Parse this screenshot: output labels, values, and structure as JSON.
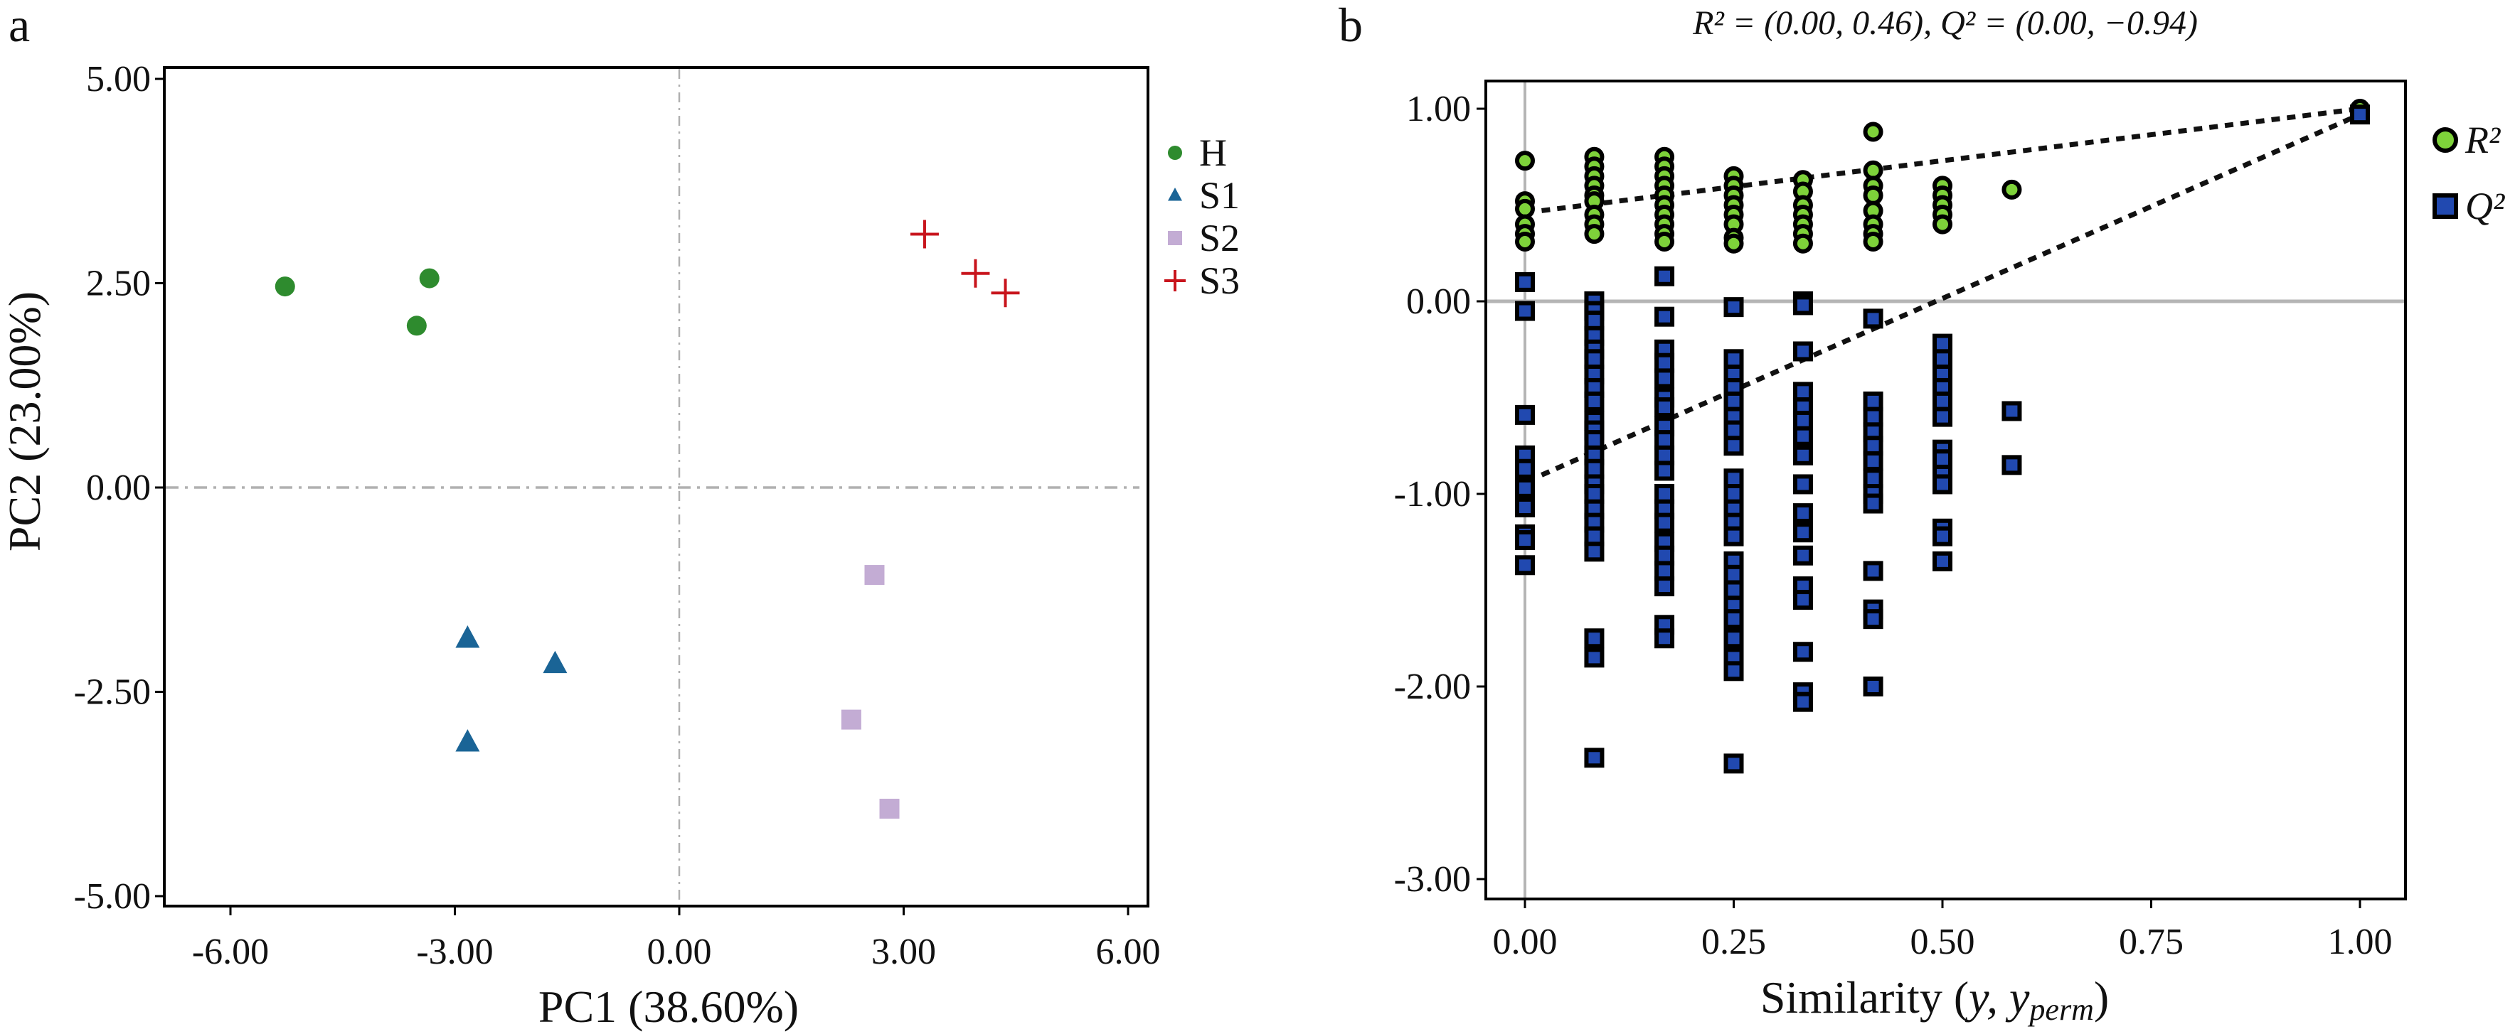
{
  "chart_data": [
    {
      "type": "scatter",
      "panel_label": "a",
      "xlabel": "PC1 (38.60%)",
      "ylabel": "PC2 (23.00%)",
      "xlim": [
        -6.9,
        6.3
      ],
      "ylim": [
        -5.15,
        5.2
      ],
      "xticks": [
        -6,
        -3,
        0,
        3,
        6
      ],
      "xtick_labels": [
        "-6.00",
        "-3.00",
        "0.00",
        "3.00",
        "6.00"
      ],
      "yticks": [
        5,
        2.5,
        0,
        -2.5,
        -5
      ],
      "ytick_labels": [
        "5.00",
        "2.50",
        "0.00",
        "-2.50",
        "-5.00"
      ],
      "reference_lines": "dash-dot at x=0 and y=0",
      "legend_position": "right",
      "series": [
        {
          "name": "H",
          "marker": "circle",
          "color": "#2e8b2e",
          "x": [
            -5.27,
            -3.34,
            -3.51
          ],
          "y": [
            2.46,
            2.56,
            1.98
          ]
        },
        {
          "name": "S1",
          "marker": "triangle",
          "color": "#1a6496",
          "x": [
            -2.83,
            -1.66,
            -2.83
          ],
          "y": [
            -1.85,
            -2.16,
            -3.12
          ]
        },
        {
          "name": "S2",
          "marker": "square",
          "color": "#c3acd4",
          "x": [
            2.61,
            2.3,
            2.81
          ],
          "y": [
            -1.07,
            -2.84,
            -3.93
          ]
        },
        {
          "name": "S3",
          "marker": "plus",
          "color": "#c8141c",
          "x": [
            3.28,
            3.96,
            4.36
          ],
          "y": [
            3.1,
            2.62,
            2.38
          ]
        }
      ]
    },
    {
      "type": "scatter",
      "panel_label": "b",
      "title": "R² = (0.00, 0.46),  Q² = (0.00, −0.94)",
      "xlabel_parts": [
        "Similarity (",
        "y",
        ", y",
        "perm",
        ")"
      ],
      "xlim": [
        -0.05,
        1.05
      ],
      "ylim": [
        -3.1,
        1.15
      ],
      "xticks": [
        0,
        0.25,
        0.5,
        0.75,
        1
      ],
      "xtick_labels": [
        "0.00",
        "0.25",
        "0.50",
        "0.75",
        "1.00"
      ],
      "yticks": [
        1,
        0,
        -1,
        -2,
        -3
      ],
      "ytick_labels": [
        "1.00",
        "0.00",
        "-1.00",
        "-2.00",
        "-3.00"
      ],
      "reference_lines": "solid gray at x=0 and y=0",
      "legend_position": "right",
      "series": [
        {
          "name": "R²",
          "marker": "circle",
          "color": "#7ed23a",
          "columns": [
            {
              "x": 0,
              "y": [
                0.73,
                0.52,
                0.48,
                0.4,
                0.35,
                0.31
              ]
            },
            {
              "x": 0.083,
              "y": [
                0.75,
                0.7,
                0.65,
                0.6,
                0.55,
                0.52,
                0.45,
                0.4,
                0.35
              ]
            },
            {
              "x": 0.167,
              "y": [
                0.75,
                0.7,
                0.65,
                0.6,
                0.55,
                0.5,
                0.45,
                0.4,
                0.35,
                0.31
              ]
            },
            {
              "x": 0.25,
              "y": [
                0.65,
                0.6,
                0.55,
                0.5,
                0.45,
                0.4,
                0.33,
                0.3
              ]
            },
            {
              "x": 0.333,
              "y": [
                0.63,
                0.57,
                0.5,
                0.45,
                0.4,
                0.35,
                0.3
              ]
            },
            {
              "x": 0.417,
              "y": [
                0.88,
                0.68,
                0.6,
                0.55,
                0.47,
                0.4,
                0.35,
                0.31
              ]
            },
            {
              "x": 0.5,
              "y": [
                0.6,
                0.55,
                0.5,
                0.45,
                0.4
              ]
            },
            {
              "x": 0.583,
              "y": [
                0.58
              ]
            },
            {
              "x": 1,
              "y": [
                1.0
              ]
            }
          ],
          "regression": {
            "intercept": 0.46,
            "at_x1": 1.0
          }
        },
        {
          "name": "Q²",
          "marker": "square",
          "color": "#2149b0",
          "columns": [
            {
              "x": 0,
              "y": [
                0.1,
                -0.05,
                -0.59,
                -0.8,
                -0.87,
                -0.97,
                -1.07,
                -1.21,
                -1.24,
                -1.37
              ]
            },
            {
              "x": 0.083,
              "y": [
                0.0,
                -0.05,
                -0.1,
                -0.18,
                -0.25,
                -0.3,
                -0.38,
                -0.45,
                -0.52,
                -0.62,
                -0.67,
                -0.72,
                -0.8,
                -0.87,
                -0.95,
                -1.0,
                -1.08,
                -1.15,
                -1.22,
                -1.3,
                -1.75,
                -1.85,
                -2.37
              ]
            },
            {
              "x": 0.167,
              "y": [
                0.13,
                -0.08,
                -0.25,
                -0.32,
                -0.4,
                -0.5,
                -0.55,
                -0.65,
                -0.72,
                -0.8,
                -0.88,
                -1.0,
                -1.08,
                -1.15,
                -1.25,
                -1.32,
                -1.4,
                -1.48,
                -1.68,
                -1.75
              ]
            },
            {
              "x": 0.25,
              "y": [
                -0.03,
                -0.3,
                -0.38,
                -0.45,
                -0.52,
                -0.6,
                -0.67,
                -0.75,
                -0.92,
                -1.0,
                -1.08,
                -1.15,
                -1.22,
                -1.35,
                -1.42,
                -1.5,
                -1.58,
                -1.65,
                -1.75,
                -1.85,
                -1.92,
                -2.4
              ]
            },
            {
              "x": 0.333,
              "y": [
                0.0,
                -0.02,
                -0.26,
                -0.47,
                -0.55,
                -0.62,
                -0.7,
                -0.8,
                -0.95,
                -1.1,
                -1.2,
                -1.32,
                -1.48,
                -1.55,
                -1.82,
                -2.03,
                -2.08
              ]
            },
            {
              "x": 0.417,
              "y": [
                -0.09,
                -0.52,
                -0.6,
                -0.68,
                -0.75,
                -0.83,
                -0.92,
                -1.0,
                -1.05,
                -1.4,
                -1.6,
                -1.65,
                -2.0
              ]
            },
            {
              "x": 0.5,
              "y": [
                -0.22,
                -0.3,
                -0.38,
                -0.45,
                -0.52,
                -0.6,
                -0.77,
                -0.82,
                -0.9,
                -0.95,
                -1.18,
                -1.22,
                -1.35
              ]
            },
            {
              "x": 0.583,
              "y": [
                -0.57,
                -0.85
              ]
            },
            {
              "x": 1,
              "y": [
                0.97
              ]
            }
          ],
          "regression": {
            "intercept": -0.94,
            "at_x1": 0.97
          }
        }
      ]
    }
  ]
}
